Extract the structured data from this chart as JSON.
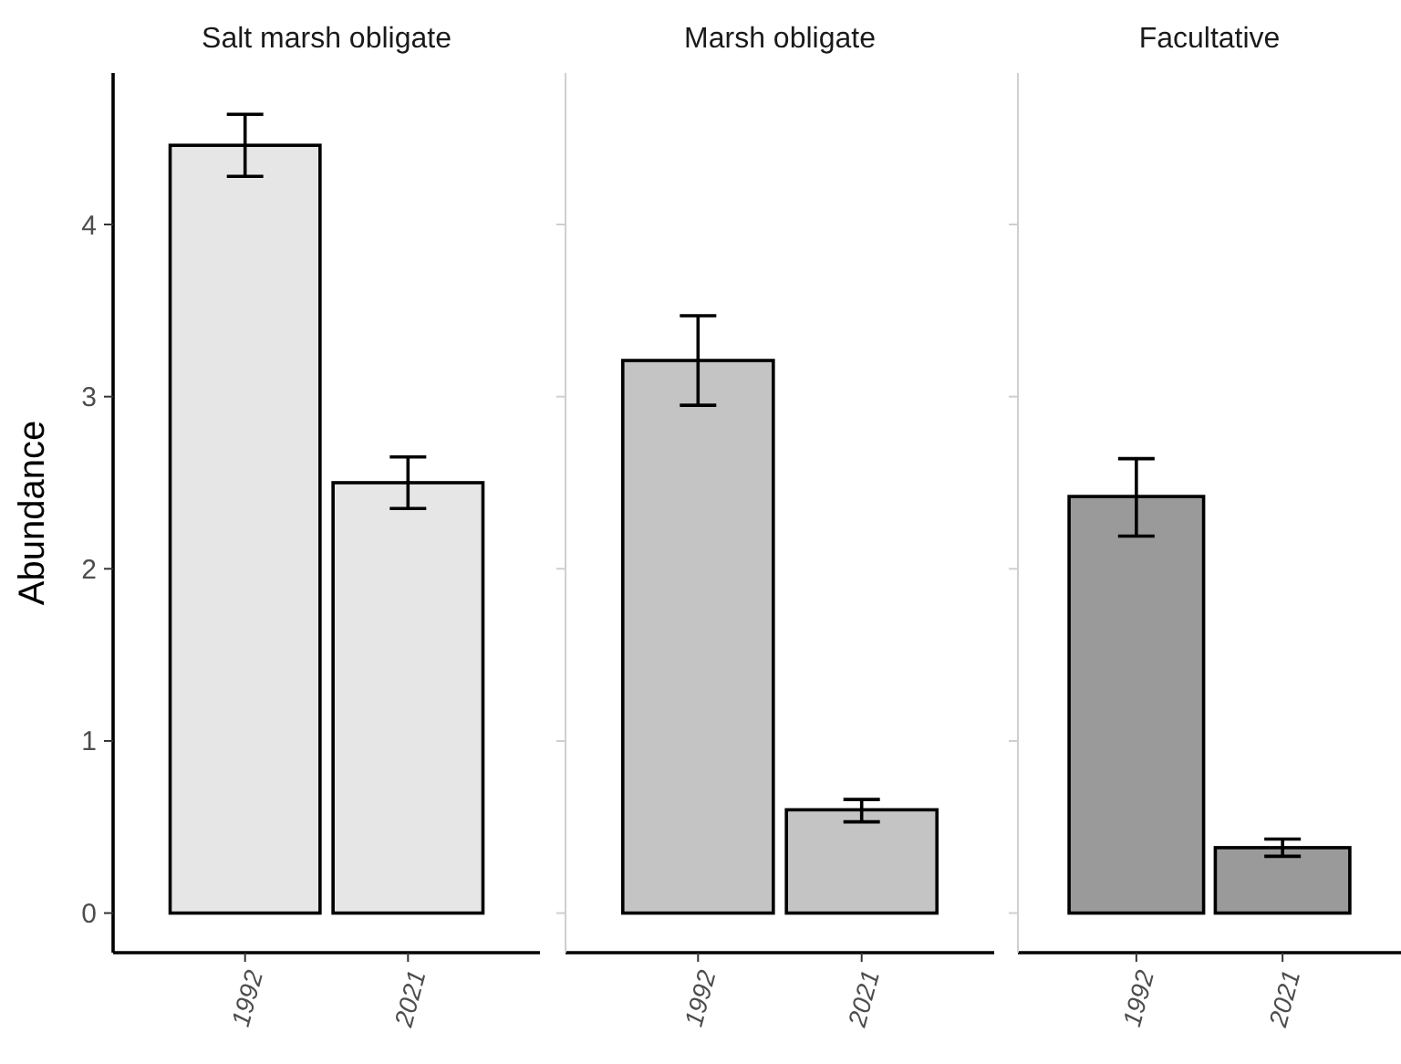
{
  "chart_data": [
    {
      "type": "bar",
      "title": "Salt marsh obligate",
      "ylabel": "Abundance",
      "categories": [
        "1992",
        "2021"
      ],
      "values": [
        4.46,
        2.5
      ],
      "errors": [
        [
          4.28,
          4.64
        ],
        [
          2.35,
          2.65
        ]
      ],
      "color": "#e6e6e6",
      "ylim": [
        -0.23,
        4.88
      ],
      "yticks": [
        0,
        1,
        2,
        3,
        4
      ],
      "grid": false
    },
    {
      "type": "bar",
      "title": "Marsh obligate",
      "categories": [
        "1992",
        "2021"
      ],
      "values": [
        3.21,
        0.6
      ],
      "errors": [
        [
          2.95,
          3.47
        ],
        [
          0.53,
          0.66
        ]
      ],
      "color": "#c4c4c4",
      "ylim": [
        -0.23,
        4.88
      ],
      "yticks": [
        0,
        1,
        2,
        3,
        4
      ],
      "tick_labels": "x",
      "grid": false
    },
    {
      "type": "bar",
      "title": "Facultative",
      "categories": [
        "1992",
        "2021"
      ],
      "values": [
        2.42,
        0.38
      ],
      "errors": [
        [
          2.19,
          2.64
        ],
        [
          0.33,
          0.43
        ]
      ],
      "color": "#9a9a9a",
      "ylim": [
        -0.23,
        4.88
      ],
      "yticks": [
        0,
        1,
        2,
        3,
        4
      ],
      "tick_labels": "x",
      "grid": false
    }
  ]
}
